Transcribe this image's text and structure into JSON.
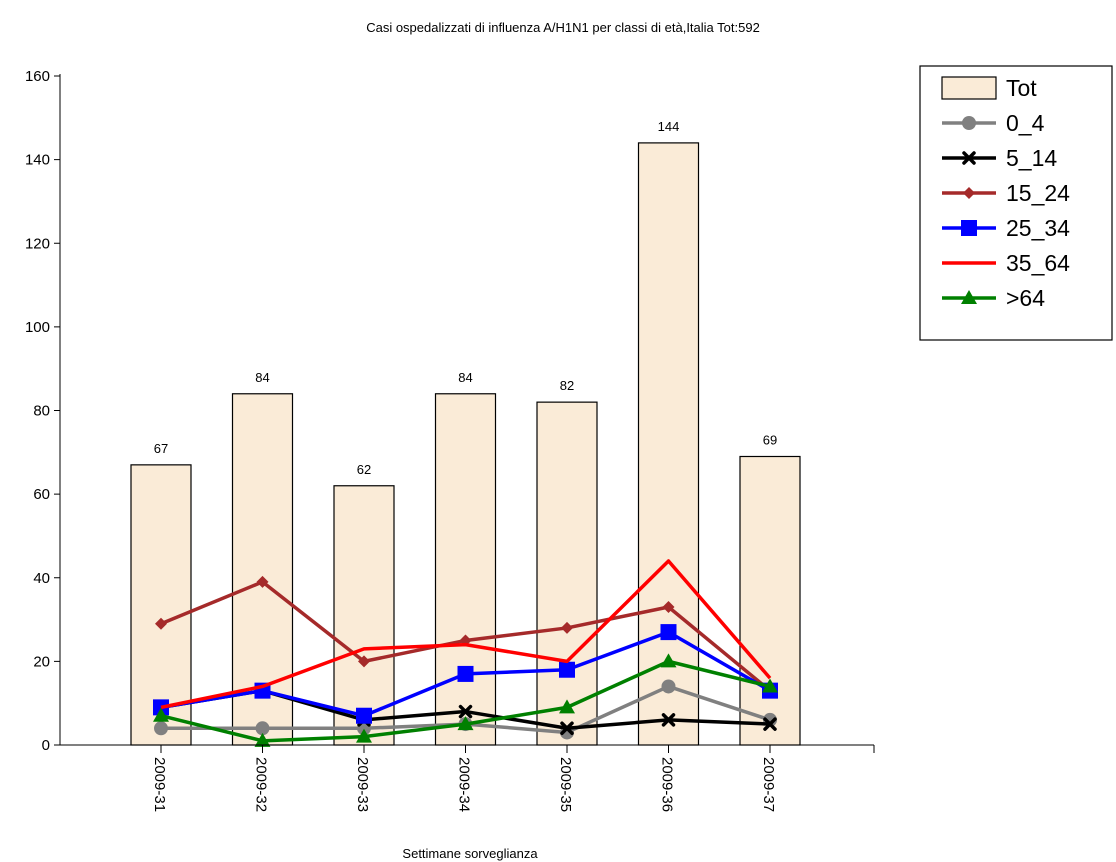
{
  "chart_data": {
    "type": "bar",
    "title": "Casi ospedalizzati di influenza A/H1N1 per classi di età,Italia Tot:592",
    "xlabel": "Settimane sorveglianza",
    "ylabel": "",
    "ylim": [
      0,
      160
    ],
    "yticks": [
      "0",
      "20",
      "40",
      "60",
      "80",
      "100",
      "120",
      "140",
      "160"
    ],
    "categories": [
      "2009-31",
      "2009-32",
      "2009-33",
      "2009-34",
      "2009-35",
      "2009-36",
      "2009-37"
    ],
    "bars": {
      "name": "Tot",
      "values": [
        67,
        84,
        62,
        84,
        82,
        144,
        69
      ],
      "labels": [
        "67",
        "84",
        "62",
        "84",
        "82",
        "144",
        "69"
      ],
      "color": "#FAEBD7"
    },
    "series": [
      {
        "name": "0_4",
        "values": [
          4,
          4,
          4,
          5,
          3,
          14,
          6
        ],
        "color": "#808080",
        "marker": "circle"
      },
      {
        "name": "5_14",
        "values": [
          9,
          13,
          6,
          8,
          4,
          6,
          5
        ],
        "color": "#000000",
        "marker": "cross"
      },
      {
        "name": "15_24",
        "values": [
          29,
          39,
          20,
          25,
          28,
          33,
          13
        ],
        "color": "#A52A2A",
        "marker": "diamond"
      },
      {
        "name": "25_34",
        "values": [
          9,
          13,
          7,
          17,
          18,
          27,
          13
        ],
        "color": "#0000FF",
        "marker": "square"
      },
      {
        "name": "35_64",
        "values": [
          9,
          14,
          23,
          24,
          20,
          44,
          16
        ],
        "color": "#FF0000",
        "marker": "none"
      },
      {
        "name": ">64",
        "values": [
          7,
          1,
          2,
          5,
          9,
          20,
          14
        ],
        "color": "#008000",
        "marker": "triangle"
      }
    ],
    "grid": false,
    "legend_position": "top-right"
  }
}
